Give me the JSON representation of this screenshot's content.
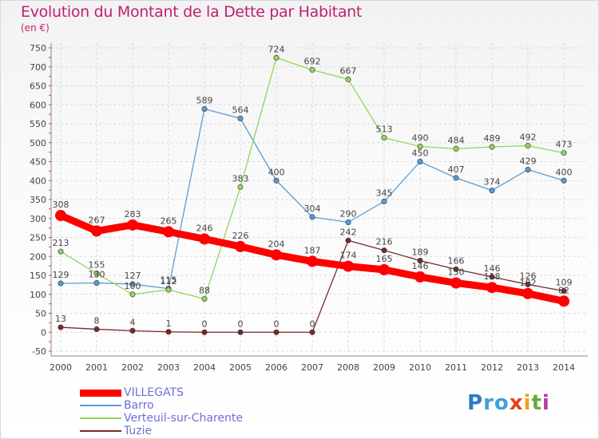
{
  "title": "Evolution du Montant de la Dette par Habitant",
  "subtitle": "(en €)",
  "logo": {
    "text": "Proxiti",
    "letters": [
      "P",
      "r",
      "o",
      "x",
      "i",
      "t",
      "i"
    ],
    "colors": [
      "#2b7bc4",
      "#3fa0d8",
      "#3fa0d8",
      "#e0431c",
      "#f0a020",
      "#6aa83a",
      "#b53ca0"
    ]
  },
  "chart_data": {
    "type": "line",
    "x": [
      "2000",
      "2001",
      "2002",
      "2003",
      "2004",
      "2005",
      "2006",
      "2007",
      "2008",
      "2009",
      "2010",
      "2011",
      "2012",
      "2013",
      "2014"
    ],
    "ylim": [
      -50,
      750
    ],
    "yticks": [
      -50,
      0,
      50,
      100,
      150,
      200,
      250,
      300,
      350,
      400,
      450,
      500,
      550,
      600,
      650,
      700,
      750
    ],
    "grid": true,
    "legend_position": "bottom-left",
    "series": [
      {
        "name": "VILLEGATS",
        "color": "#ff0000",
        "width": 9,
        "marker": 7,
        "values": [
          308,
          267,
          283,
          265,
          246,
          226,
          204,
          187,
          174,
          165,
          146,
          130,
          118,
          102,
          82
        ],
        "labels": [
          "308",
          "267",
          "283",
          "265",
          "246",
          "226",
          "204",
          "187",
          "174",
          "165",
          "146",
          "130",
          "118",
          "102",
          "82"
        ]
      },
      {
        "name": "Barro",
        "color": "#5b9bd5",
        "width": 1.3,
        "marker": 3.2,
        "values": [
          129,
          130,
          127,
          115,
          589,
          564,
          400,
          304,
          290,
          345,
          450,
          407,
          374,
          429,
          400
        ],
        "labels": [
          "129",
          "130",
          "127",
          "115",
          "589",
          "564",
          "400",
          "304",
          "290",
          "345",
          "450",
          "407",
          "374",
          "429",
          "400"
        ]
      },
      {
        "name": "Verteuil-sur-Charente",
        "color": "#8fd65a",
        "width": 1.3,
        "marker": 3.2,
        "values": [
          213,
          155,
          100,
          112,
          88,
          383,
          724,
          692,
          667,
          513,
          490,
          484,
          489,
          492,
          473
        ],
        "labels": [
          "213",
          "155",
          "100",
          "112",
          "88",
          "383",
          "724",
          "692",
          "667",
          "513",
          "490",
          "484",
          "489",
          "492",
          "473"
        ]
      },
      {
        "name": "Tuzie",
        "color": "#7a2828",
        "width": 1.3,
        "marker": 3.2,
        "values": [
          13,
          8,
          4,
          1,
          0,
          0,
          0,
          0,
          242,
          216,
          189,
          166,
          146,
          126,
          109
        ],
        "labels": [
          "13",
          "8",
          "4",
          "1",
          "0",
          "0",
          "0",
          "0",
          "242",
          "216",
          "189",
          "166",
          "146",
          "126",
          "109"
        ]
      }
    ]
  }
}
